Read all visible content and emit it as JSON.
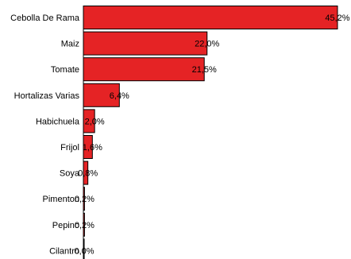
{
  "chart_data": {
    "type": "bar",
    "orientation": "horizontal",
    "categories": [
      "Cebolla De Rama",
      "Maiz",
      "Tomate",
      "Hortalizas Varias",
      "Habichuela",
      "Frijol",
      "Soya",
      "Pimenton",
      "Pepino",
      "Cilantro"
    ],
    "values": [
      45.2,
      22.0,
      21.5,
      6.4,
      2.0,
      1.6,
      0.8,
      0.2,
      0.2,
      0.0
    ],
    "value_labels": [
      "45,2%",
      "22,0%",
      "21,5%",
      "6,4%",
      "2,0%",
      "1,6%",
      "0,8%",
      "0,2%",
      "0,2%",
      "0,0%"
    ],
    "xlim": [
      0,
      45.2
    ],
    "grid": false,
    "legend": "none",
    "bar_color": "#e52325",
    "bar_edge_color": "#000000"
  }
}
